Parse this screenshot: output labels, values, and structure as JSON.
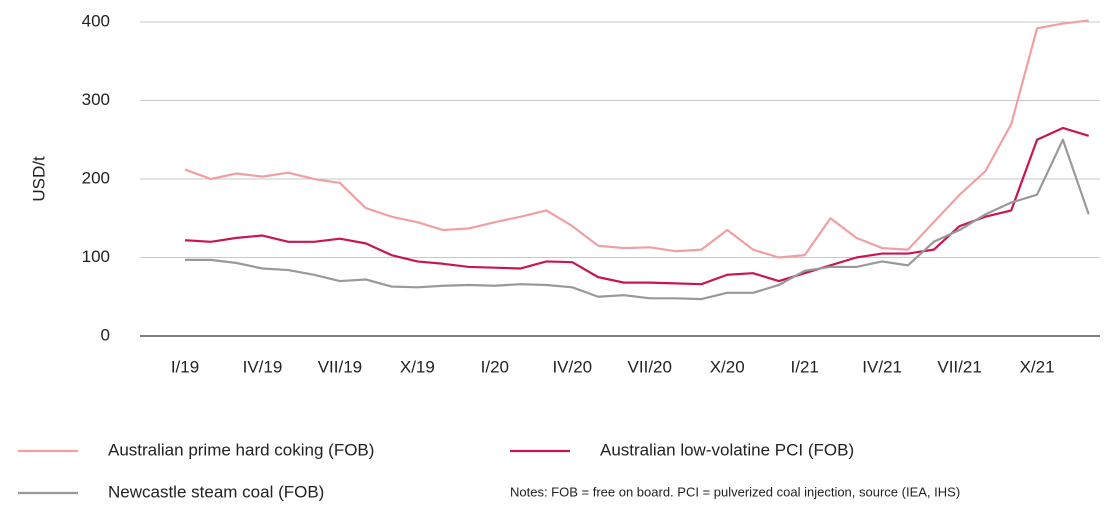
{
  "chart_data": {
    "type": "line",
    "y_label": "USD/t",
    "categories": [
      "I/19",
      null,
      null,
      "IV/19",
      null,
      null,
      "VII/19",
      null,
      null,
      "X/19",
      null,
      null,
      "I/20",
      null,
      null,
      "IV/20",
      null,
      null,
      "VII/20",
      null,
      null,
      "X/20",
      null,
      null,
      "I/21",
      null,
      null,
      "IV/21",
      null,
      null,
      "VII/21",
      null,
      null,
      "X/21",
      null,
      null
    ],
    "series": [
      {
        "name": "Australian prime hard coking (FOB)",
        "color": "#f0a0a5",
        "values": [
          212,
          200,
          207,
          203,
          208,
          200,
          195,
          163,
          152,
          145,
          135,
          137,
          145,
          152,
          160,
          140,
          115,
          112,
          113,
          108,
          110,
          135,
          110,
          100,
          103,
          150,
          125,
          112,
          110,
          145,
          180,
          210,
          270,
          392,
          398,
          402
        ]
      },
      {
        "name": "Australian low-volatine PCI (FOB)",
        "color": "#c8174f",
        "values": [
          122,
          120,
          125,
          128,
          120,
          120,
          124,
          118,
          103,
          95,
          92,
          88,
          87,
          86,
          95,
          94,
          75,
          68,
          68,
          67,
          66,
          78,
          80,
          70,
          80,
          90,
          100,
          105,
          105,
          110,
          140,
          152,
          160,
          250,
          265,
          255
        ]
      },
      {
        "name": "Newcastle steam coal (FOB)",
        "color": "#999999",
        "values": [
          97,
          97,
          93,
          86,
          84,
          78,
          70,
          72,
          63,
          62,
          64,
          65,
          64,
          66,
          65,
          62,
          50,
          52,
          48,
          48,
          47,
          55,
          55,
          65,
          83,
          88,
          88,
          95,
          90,
          120,
          135,
          155,
          170,
          180,
          250,
          155
        ]
      }
    ],
    "ylim": [
      0,
      400
    ],
    "yticks": [
      0,
      100,
      200,
      300,
      400
    ],
    "grid": true,
    "notes": "Notes: FOB = free on board. PCI = pulverized coal injection, source (IEA, IHS)"
  }
}
